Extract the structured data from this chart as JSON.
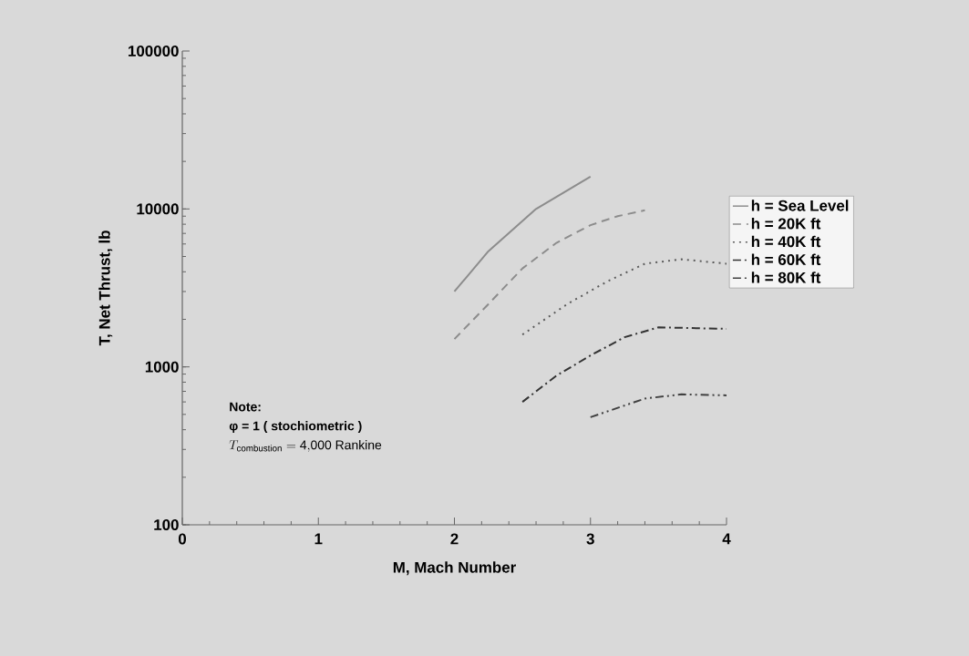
{
  "chart_data": {
    "type": "line",
    "xlabel": "M, Mach Number",
    "ylabel": "T, Net Thrust, lb",
    "xlim": [
      0,
      4
    ],
    "xticks": [
      0,
      1,
      2,
      3,
      4
    ],
    "ylim": [
      100,
      100000
    ],
    "yticks": [
      100,
      1000,
      10000,
      100000
    ],
    "log": "y",
    "legend": "right",
    "annotations": [
      "Note:",
      "φ  = 1 ( stochiometric )",
      "T_{\\mathrm{combustion}} = \\mathrm{4{,}000\\ Rankine}"
    ],
    "series": [
      {
        "name": "h = Sea Level",
        "color": "#8c8c8c",
        "line_style": "solid",
        "x": [
          2,
          2.25,
          2.6,
          3
        ],
        "values": [
          3000,
          5400,
          10000,
          16000
        ]
      },
      {
        "name": "h = 20K ft",
        "color": "#8c8c8c",
        "line_style": "dashed",
        "x": [
          2,
          2.25,
          2.5,
          2.75,
          3,
          3.2,
          3.4
        ],
        "values": [
          1500,
          2500,
          4200,
          6100,
          7900,
          9000,
          9800
        ]
      },
      {
        "name": "h = 40K ft",
        "color": "#5a5a5a",
        "line_style": "dotted",
        "x": [
          2.5,
          2.83,
          3.13,
          3.4,
          3.67,
          4
        ],
        "values": [
          1600,
          2500,
          3500,
          4500,
          4800,
          4500
        ]
      },
      {
        "name": "h = 60K ft",
        "color": "#333333",
        "line_style": "dashdot",
        "x": [
          2.5,
          2.75,
          3,
          3.25,
          3.5,
          4
        ],
        "values": [
          600,
          880,
          1180,
          1540,
          1780,
          1740
        ]
      },
      {
        "name": "h = 80K ft",
        "color": "#404040",
        "line_style": "dashdotdot",
        "x": [
          3,
          3.4,
          3.67,
          4
        ],
        "values": [
          480,
          630,
          670,
          660
        ]
      }
    ]
  }
}
